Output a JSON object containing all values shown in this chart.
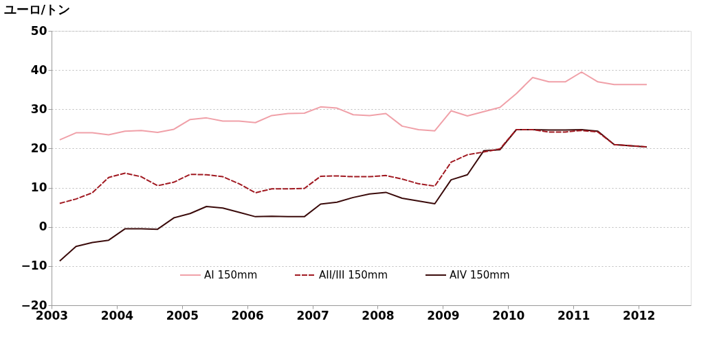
{
  "chart_data": {
    "type": "line",
    "ylabel": "ユーロ/トン",
    "x": [
      2003.125,
      2003.375,
      2003.625,
      2003.875,
      2004.125,
      2004.375,
      2004.625,
      2004.875,
      2005.125,
      2005.375,
      2005.625,
      2005.875,
      2006.125,
      2006.375,
      2006.625,
      2006.875,
      2007.125,
      2007.375,
      2007.625,
      2007.875,
      2008.125,
      2008.375,
      2008.625,
      2008.875,
      2009.125,
      2009.375,
      2009.625,
      2009.875,
      2010.125,
      2010.375,
      2010.625,
      2010.875,
      2011.125,
      2011.375,
      2011.625,
      2011.875,
      2012.125
    ],
    "series": [
      {
        "name": "AI 150mm",
        "color": "#f0a0a8",
        "line_style": "solid",
        "values": [
          22.2,
          24.0,
          24.0,
          23.5,
          24.4,
          24.6,
          24.1,
          24.9,
          27.4,
          27.8,
          27.0,
          27.0,
          26.6,
          28.4,
          28.9,
          29.0,
          30.6,
          30.3,
          28.6,
          28.4,
          28.9,
          25.7,
          24.8,
          24.5,
          29.6,
          28.3,
          29.4,
          30.5,
          34.0,
          38.1,
          37.0,
          37.0,
          39.5,
          37.0,
          36.3,
          36.3,
          36.3
        ]
      },
      {
        "name": "AII/III 150mm",
        "color": "#a01820",
        "line_style": "dashed",
        "values": [
          6.0,
          7.1,
          8.7,
          12.6,
          13.7,
          12.8,
          10.5,
          11.4,
          13.4,
          13.3,
          12.8,
          11.0,
          8.7,
          9.7,
          9.7,
          9.8,
          12.9,
          13.0,
          12.8,
          12.8,
          13.1,
          12.2,
          11.0,
          10.4,
          16.5,
          18.4,
          19.1,
          19.9,
          24.8,
          24.8,
          24.2,
          24.2,
          24.6,
          24.2,
          21.0,
          20.7,
          20.4
        ]
      },
      {
        "name": "AIV 150mm",
        "color": "#3a0a0a",
        "line_style": "solid",
        "values": [
          -8.7,
          -5.0,
          -4.0,
          -3.4,
          -0.5,
          -0.5,
          -0.6,
          2.3,
          3.4,
          5.2,
          4.8,
          3.7,
          2.6,
          2.7,
          2.6,
          2.6,
          5.8,
          6.3,
          7.5,
          8.4,
          8.8,
          7.3,
          6.6,
          5.9,
          12.0,
          13.3,
          19.4,
          19.7,
          24.8,
          24.8,
          24.7,
          24.7,
          24.8,
          24.4,
          21.0,
          20.7,
          20.4
        ]
      }
    ],
    "xlim": [
      2003,
      2012.8
    ],
    "xticks": [
      2003,
      2004,
      2005,
      2006,
      2007,
      2008,
      2009,
      2010,
      2011,
      2012
    ],
    "ylim": [
      -20,
      50
    ],
    "yticks": [
      -20,
      -10,
      0,
      10,
      20,
      30,
      40,
      50
    ],
    "grid": "y",
    "legend": "bottom",
    "marker": "none"
  }
}
